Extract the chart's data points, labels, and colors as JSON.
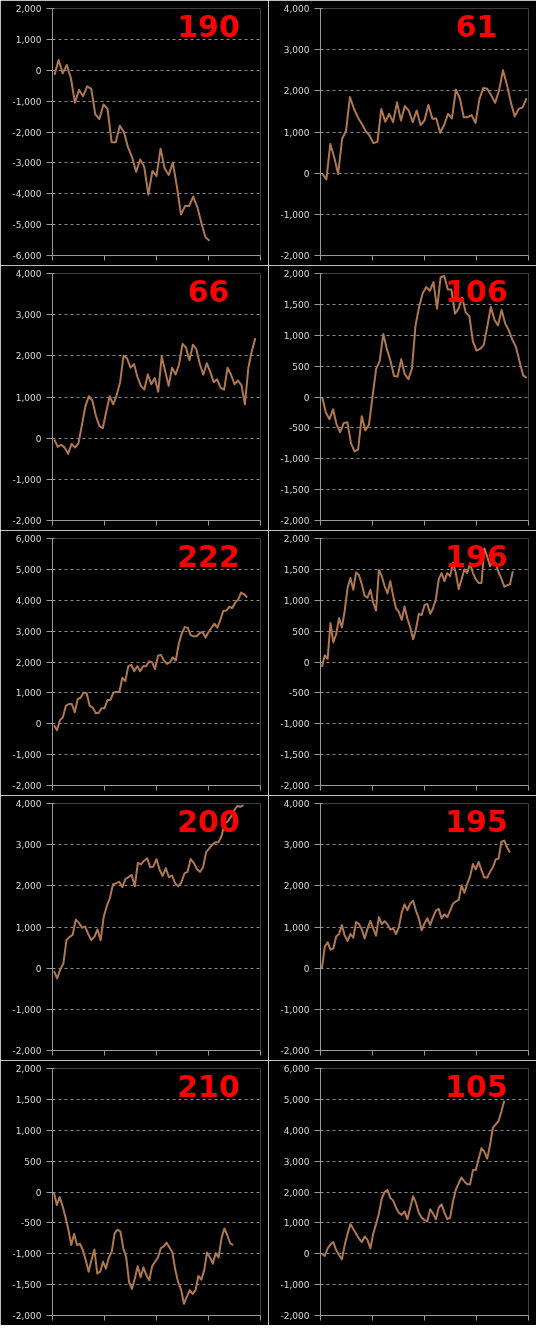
{
  "chart_data": [
    {
      "type": "line",
      "title": "190",
      "color": "#b07850",
      "grid": "y",
      "tick_labels": "y",
      "ylim": [
        -6000,
        2000
      ],
      "yticks": [
        {
          "value": -6000,
          "label": "-6,000"
        },
        {
          "value": -5000,
          "label": "-5,000"
        },
        {
          "value": -4000,
          "label": "-4,000"
        },
        {
          "value": -3000,
          "label": "-3,000"
        },
        {
          "value": -2000,
          "label": "-2,000"
        },
        {
          "value": -1000,
          "label": "-1,000"
        },
        0,
        {
          "value": 1000,
          "label": "1,000"
        },
        {
          "value": 2000,
          "label": "2,000"
        }
      ],
      "categories": [
        null,
        null,
        null,
        null,
        null,
        null,
        null,
        null,
        null,
        null,
        null,
        null,
        null,
        null,
        null,
        null,
        null,
        null,
        null,
        null,
        null,
        null,
        null,
        null,
        null,
        null,
        null,
        null,
        null,
        null,
        null,
        null,
        null,
        null,
        null,
        null,
        null,
        null,
        null,
        null,
        null,
        null,
        null,
        null,
        null,
        null,
        null,
        null,
        null,
        null,
        null
      ],
      "values": [
        -150,
        330,
        -100,
        170,
        -250,
        -1050,
        -630,
        -840,
        -520,
        -600,
        -1430,
        -1580,
        -1110,
        -1250,
        -2330,
        -2330,
        -1800,
        -2000,
        -2490,
        -2810,
        -3290,
        -2890,
        -3130,
        -4030,
        -3260,
        -3430,
        -2540,
        -3180,
        -3390,
        -2990,
        -3770,
        -4670,
        -4400,
        -4400,
        -4090,
        -4430,
        -4940,
        -5410,
        -5520,
        null,
        null,
        null,
        null,
        null,
        null,
        null,
        null,
        null,
        null,
        null,
        null
      ]
    },
    {
      "type": "line",
      "title": "61",
      "color": "#b07850",
      "grid": "y",
      "tick_labels": "y",
      "ylim": [
        -2000,
        4000
      ],
      "yticks": [
        {
          "value": -2000,
          "label": "-2,000"
        },
        {
          "value": -1000,
          "label": "-1,000"
        },
        0,
        {
          "value": 1000,
          "label": "1,000"
        },
        {
          "value": 2000,
          "label": "2,000"
        },
        {
          "value": 3000,
          "label": "3,000"
        },
        {
          "value": 4000,
          "label": "4,000"
        }
      ],
      "categories": [
        null,
        null,
        null,
        null,
        null,
        null,
        null,
        null,
        null,
        null,
        null,
        null,
        null,
        null,
        null,
        null,
        null,
        null,
        null,
        null,
        null,
        null,
        null,
        null,
        null,
        null,
        null,
        null,
        null,
        null,
        null,
        null,
        null,
        null,
        null,
        null,
        null,
        null,
        null,
        null,
        null,
        null,
        null,
        null,
        null,
        null,
        null,
        null,
        null,
        null,
        null,
        null,
        null
      ],
      "values": [
        -20,
        -150,
        710,
        380,
        -20,
        830,
        1030,
        1850,
        1570,
        1360,
        1200,
        1030,
        910,
        730,
        760,
        1560,
        1250,
        1440,
        1240,
        1720,
        1280,
        1630,
        1520,
        1240,
        1520,
        1170,
        1280,
        1660,
        1320,
        1330,
        980,
        1170,
        1440,
        1330,
        2030,
        1820,
        1360,
        1360,
        1410,
        1220,
        1800,
        2070,
        2050,
        1890,
        1710,
        2010,
        2500,
        2150,
        1720,
        1380,
        1560,
        1600,
        1820
      ]
    },
    {
      "type": "line",
      "title": "66",
      "color": "#b07850",
      "grid": "y",
      "tick_labels": "y",
      "ylim": [
        -2000,
        4000
      ],
      "yticks": [
        {
          "value": -2000,
          "label": "-2,000"
        },
        {
          "value": -1000,
          "label": "-1,000"
        },
        0,
        {
          "value": 1000,
          "label": "1,000"
        },
        {
          "value": 2000,
          "label": "2,000"
        },
        {
          "value": 3000,
          "label": "3,000"
        },
        {
          "value": 4000,
          "label": "4,000"
        }
      ],
      "categories": [
        null,
        null,
        null,
        null,
        null,
        null,
        null,
        null,
        null,
        null,
        null,
        null,
        null,
        null,
        null,
        null,
        null,
        null,
        null,
        null,
        null,
        null,
        null,
        null,
        null,
        null,
        null,
        null,
        null,
        null,
        null,
        null,
        null,
        null,
        null,
        null,
        null,
        null,
        null,
        null,
        null,
        null,
        null,
        null,
        null,
        null,
        null,
        null,
        null,
        null,
        null,
        null,
        null,
        null,
        null,
        null,
        null,
        null,
        null,
        null
      ],
      "values": [
        -30,
        -210,
        -160,
        -230,
        -380,
        -140,
        -230,
        -120,
        330,
        780,
        1020,
        910,
        550,
        300,
        240,
        640,
        1020,
        820,
        1040,
        1360,
        2000,
        1940,
        1710,
        1800,
        1490,
        1270,
        1180,
        1550,
        1310,
        1460,
        1130,
        1980,
        1630,
        1270,
        1710,
        1550,
        1790,
        2290,
        2200,
        1890,
        2270,
        2160,
        1800,
        1540,
        1820,
        1610,
        1360,
        1430,
        1220,
        1180,
        1710,
        1540,
        1310,
        1400,
        1290,
        820,
        1710,
        2120,
        2430,
        null
      ]
    },
    {
      "type": "line",
      "title": "106",
      "color": "#b07850",
      "grid": "y",
      "tick_labels": "y",
      "ylim": [
        -2000,
        2000
      ],
      "yticks": [
        {
          "value": -2000,
          "label": "-2,000"
        },
        {
          "value": -1500,
          "label": "-1,500"
        },
        {
          "value": -1000,
          "label": "-1,000"
        },
        -500,
        0,
        500,
        {
          "value": 1000,
          "label": "1,000"
        },
        {
          "value": 1500,
          "label": "1,500"
        },
        {
          "value": 2000,
          "label": "2,000"
        }
      ],
      "categories": [
        null,
        null,
        null,
        null,
        null,
        null,
        null,
        null,
        null,
        null,
        null,
        null,
        null,
        null,
        null,
        null,
        null,
        null,
        null,
        null,
        null,
        null,
        null,
        null,
        null,
        null,
        null,
        null,
        null,
        null,
        null,
        null,
        null,
        null,
        null,
        null,
        null,
        null,
        null,
        null,
        null,
        null,
        null,
        null,
        null,
        null,
        null,
        null,
        null,
        null,
        null,
        null,
        null,
        null,
        null,
        null,
        null,
        null
      ],
      "values": [
        -10,
        -250,
        -360,
        -200,
        -450,
        -570,
        -420,
        -410,
        -750,
        -880,
        -850,
        -310,
        -540,
        -450,
        0,
        450,
        580,
        1020,
        780,
        590,
        340,
        330,
        610,
        370,
        290,
        460,
        1160,
        1460,
        1680,
        1780,
        1720,
        1860,
        1430,
        1940,
        1960,
        1740,
        1740,
        1350,
        1430,
        1610,
        1370,
        1310,
        900,
        750,
        780,
        840,
        1140,
        1460,
        1250,
        1160,
        1410,
        1190,
        1080,
        930,
        810,
        580,
        350,
        310
      ]
    },
    {
      "type": "line",
      "title": "222",
      "color": "#b07850",
      "grid": "y",
      "tick_labels": "y",
      "ylim": [
        -2000,
        6000
      ],
      "yticks": [
        {
          "value": -2000,
          "label": "-2,000"
        },
        {
          "value": -1000,
          "label": "-1,000"
        },
        0,
        {
          "value": 1000,
          "label": "1,000"
        },
        {
          "value": 2000,
          "label": "2,000"
        },
        {
          "value": 3000,
          "label": "3,000"
        },
        {
          "value": 4000,
          "label": "4,000"
        },
        {
          "value": 5000,
          "label": "5,000"
        },
        {
          "value": 6000,
          "label": "6,000"
        }
      ],
      "categories": [
        null,
        null,
        null,
        null,
        null,
        null,
        null,
        null,
        null,
        null,
        null,
        null,
        null,
        null,
        null,
        null,
        null,
        null,
        null,
        null,
        null,
        null,
        null,
        null,
        null,
        null,
        null,
        null,
        null,
        null,
        null,
        null,
        null,
        null,
        null,
        null,
        null,
        null,
        null,
        null,
        null,
        null,
        null,
        null,
        null,
        null,
        null,
        null,
        null,
        null,
        null,
        null,
        null,
        null,
        null,
        null,
        null,
        null,
        null,
        null,
        null,
        null,
        null,
        null,
        null,
        null,
        null,
        null,
        null,
        null
      ],
      "values": [
        -50,
        -210,
        110,
        210,
        580,
        640,
        640,
        370,
        800,
        850,
        1010,
        990,
        580,
        530,
        350,
        350,
        500,
        500,
        770,
        770,
        1010,
        1030,
        1030,
        1490,
        1380,
        1860,
        1910,
        1700,
        1860,
        1700,
        1860,
        1860,
        2020,
        1990,
        1770,
        2200,
        2230,
        2050,
        1940,
        1990,
        2150,
        2050,
        2600,
        2920,
        3130,
        3110,
        2870,
        2830,
        2830,
        2940,
        2970,
        2790,
        2970,
        3110,
        3240,
        3110,
        3370,
        3660,
        3660,
        3790,
        3750,
        3930,
        4030,
        4250,
        4190,
        4090,
        null,
        null,
        null,
        null
      ]
    },
    {
      "type": "line",
      "title": "196",
      "color": "#b07850",
      "grid": "y",
      "tick_labels": "y",
      "ylim": [
        -2000,
        2000
      ],
      "yticks": [
        {
          "value": -2000,
          "label": "-2,000"
        },
        {
          "value": -1500,
          "label": "-1,500"
        },
        {
          "value": -1000,
          "label": "-1,000"
        },
        -500,
        0,
        500,
        {
          "value": 1000,
          "label": "1,000"
        },
        {
          "value": 1500,
          "label": "1,500"
        },
        {
          "value": 2000,
          "label": "2,000"
        }
      ],
      "categories": [
        null,
        null,
        null,
        null,
        null,
        null,
        null,
        null,
        null,
        null,
        null,
        null,
        null,
        null,
        null,
        null,
        null,
        null,
        null,
        null,
        null,
        null,
        null,
        null,
        null,
        null,
        null,
        null,
        null,
        null,
        null,
        null,
        null,
        null,
        null,
        null,
        null,
        null,
        null,
        null,
        null,
        null,
        null,
        null,
        null,
        null,
        null,
        null,
        null,
        null,
        null,
        null,
        null,
        null,
        null,
        null,
        null,
        null,
        null,
        null,
        null,
        null,
        null,
        null,
        null,
        null,
        null,
        null,
        null,
        null,
        null,
        null,
        null
      ],
      "values": [
        -80,
        110,
        50,
        630,
        320,
        450,
        710,
        560,
        830,
        1200,
        1360,
        1170,
        1450,
        1410,
        1260,
        1070,
        1040,
        1170,
        960,
        830,
        1490,
        1390,
        1230,
        1110,
        1310,
        1070,
        870,
        810,
        680,
        900,
        700,
        560,
        370,
        530,
        780,
        760,
        920,
        940,
        780,
        870,
        1020,
        1340,
        1440,
        1310,
        1440,
        1390,
        1610,
        1440,
        1180,
        1340,
        1500,
        1440,
        1600,
        1440,
        1340,
        1280,
        1280,
        1840,
        1710,
        1550,
        1630,
        1600,
        1450,
        1350,
        1220,
        1240,
        1260,
        1470,
        null,
        null,
        null,
        null,
        null
      ]
    },
    {
      "type": "line",
      "title": "200",
      "color": "#b07850",
      "grid": "y",
      "tick_labels": "y",
      "ylim": [
        -2000,
        4000
      ],
      "yticks": [
        {
          "value": -2000,
          "label": "-2,000"
        },
        {
          "value": -1000,
          "label": "-1,000"
        },
        0,
        {
          "value": 1000,
          "label": "1,000"
        },
        {
          "value": 2000,
          "label": "2,000"
        },
        {
          "value": 3000,
          "label": "3,000"
        },
        {
          "value": 4000,
          "label": "4,000"
        }
      ],
      "categories": [
        null,
        null,
        null,
        null,
        null,
        null,
        null,
        null,
        null,
        null,
        null,
        null,
        null,
        null,
        null,
        null,
        null,
        null,
        null,
        null,
        null,
        null,
        null,
        null,
        null,
        null,
        null,
        null,
        null,
        null,
        null,
        null,
        null,
        null,
        null,
        null,
        null,
        null,
        null,
        null,
        null,
        null,
        null,
        null,
        null,
        null,
        null,
        null,
        null,
        null,
        null,
        null,
        null,
        null,
        null,
        null,
        null,
        null,
        null,
        null,
        null,
        null,
        null,
        null,
        null,
        null,
        null
      ],
      "values": [
        -70,
        -250,
        -30,
        110,
        680,
        760,
        810,
        1180,
        1100,
        980,
        1010,
        830,
        680,
        760,
        940,
        680,
        1250,
        1510,
        1710,
        2040,
        2060,
        2100,
        1970,
        2170,
        2210,
        2270,
        1990,
        2560,
        2520,
        2610,
        2670,
        2450,
        2470,
        2650,
        2390,
        2240,
        2430,
        2210,
        2250,
        2060,
        1990,
        2080,
        2300,
        2340,
        2650,
        2560,
        2410,
        2340,
        2450,
        2820,
        2910,
        3000,
        3060,
        3060,
        3220,
        3530,
        3570,
        3680,
        3830,
        3940,
        3920,
        3960,
        null,
        null,
        null,
        null,
        null
      ]
    },
    {
      "type": "line",
      "title": "195",
      "color": "#b07850",
      "grid": "y",
      "tick_labels": "y",
      "ylim": [
        -2000,
        4000
      ],
      "yticks": [
        {
          "value": -2000,
          "label": "-2,000"
        },
        {
          "value": -1000,
          "label": "-1,000"
        },
        0,
        {
          "value": 1000,
          "label": "1,000"
        },
        {
          "value": 2000,
          "label": "2,000"
        },
        {
          "value": 3000,
          "label": "3,000"
        },
        {
          "value": 4000,
          "label": "4,000"
        }
      ],
      "categories": [
        null,
        null,
        null,
        null,
        null,
        null,
        null,
        null,
        null,
        null,
        null,
        null,
        null,
        null,
        null,
        null,
        null,
        null,
        null,
        null,
        null,
        null,
        null,
        null,
        null,
        null,
        null,
        null,
        null,
        null,
        null,
        null,
        null,
        null,
        null,
        null,
        null,
        null,
        null,
        null,
        null,
        null,
        null,
        null,
        null,
        null,
        null,
        null,
        null,
        null,
        null,
        null,
        null,
        null,
        null,
        null,
        null,
        null,
        null,
        null,
        null,
        null,
        null,
        null,
        null,
        null,
        null,
        null,
        null,
        null,
        null,
        null,
        null
      ],
      "values": [
        0,
        520,
        630,
        450,
        480,
        770,
        830,
        1050,
        790,
        660,
        830,
        740,
        1120,
        1070,
        940,
        720,
        960,
        1150,
        960,
        790,
        1240,
        1070,
        1140,
        1070,
        940,
        960,
        830,
        1000,
        1350,
        1550,
        1410,
        1570,
        1640,
        1400,
        1210,
        920,
        1090,
        1210,
        1050,
        1240,
        1400,
        1440,
        1210,
        1310,
        1240,
        1400,
        1570,
        1620,
        1660,
        2010,
        1830,
        2050,
        2230,
        2530,
        2400,
        2580,
        2380,
        2200,
        2200,
        2340,
        2450,
        2640,
        2660,
        3070,
        3100,
        2930,
        2810,
        null,
        null,
        null,
        null,
        null,
        null
      ]
    },
    {
      "type": "line",
      "title": "210",
      "color": "#b07850",
      "grid": "y",
      "tick_labels": "y",
      "ylim": [
        -2000,
        2000
      ],
      "yticks": [
        {
          "value": -2000,
          "label": "-2,000"
        },
        {
          "value": -1500,
          "label": "-1,500"
        },
        {
          "value": -1000,
          "label": "-1,000"
        },
        -500,
        0,
        500,
        {
          "value": 1000,
          "label": "1,000"
        },
        {
          "value": 1500,
          "label": "1,500"
        },
        {
          "value": 2000,
          "label": "2,000"
        }
      ],
      "categories": [
        null,
        null,
        null,
        null,
        null,
        null,
        null,
        null,
        null,
        null,
        null,
        null,
        null,
        null,
        null,
        null,
        null,
        null,
        null,
        null,
        null,
        null,
        null,
        null,
        null,
        null,
        null,
        null,
        null,
        null,
        null,
        null,
        null,
        null,
        null,
        null,
        null,
        null,
        null,
        null,
        null,
        null,
        null,
        null,
        null,
        null,
        null,
        null,
        null,
        null,
        null,
        null,
        null,
        null,
        null,
        null,
        null,
        null,
        null,
        null,
        null,
        null,
        null,
        null,
        null,
        null,
        null,
        null,
        null,
        null,
        null,
        null
      ],
      "values": [
        -10,
        -210,
        -80,
        -230,
        -410,
        -610,
        -860,
        -680,
        -860,
        -840,
        -940,
        -1100,
        -1290,
        -1100,
        -930,
        -1320,
        -1290,
        -1130,
        -1240,
        -1060,
        -970,
        -670,
        -610,
        -640,
        -910,
        -1050,
        -1460,
        -1570,
        -1400,
        -1200,
        -1380,
        -1220,
        -1350,
        -1430,
        -1200,
        -1130,
        -1060,
        -910,
        -880,
        -820,
        -900,
        -980,
        -1260,
        -1460,
        -1580,
        -1810,
        -1700,
        -1590,
        -1650,
        -1590,
        -1360,
        -1420,
        -1270,
        -980,
        -1060,
        -1160,
        -990,
        -1060,
        -750,
        -590,
        -700,
        -830,
        -860,
        null,
        null,
        null,
        null,
        null,
        null,
        null,
        null,
        null
      ]
    },
    {
      "type": "line",
      "title": "105",
      "color": "#b07850",
      "grid": "y",
      "tick_labels": "y",
      "ylim": [
        -2000,
        6000
      ],
      "yticks": [
        {
          "value": -2000,
          "label": "-2,000"
        },
        {
          "value": -1000,
          "label": "-1,000"
        },
        0,
        {
          "value": 1000,
          "label": "1,000"
        },
        {
          "value": 2000,
          "label": "2,000"
        },
        {
          "value": 3000,
          "label": "3,000"
        },
        {
          "value": 4000,
          "label": "4,000"
        },
        {
          "value": 5000,
          "label": "5,000"
        },
        {
          "value": 6000,
          "label": "6,000"
        }
      ],
      "categories": [
        null,
        null,
        null,
        null,
        null,
        null,
        null,
        null,
        null,
        null,
        null,
        null,
        null,
        null,
        null,
        null,
        null,
        null,
        null,
        null,
        null,
        null,
        null,
        null,
        null,
        null,
        null,
        null,
        null,
        null,
        null,
        null,
        null,
        null,
        null,
        null,
        null,
        null,
        null,
        null,
        null,
        null,
        null,
        null,
        null,
        null,
        null,
        null,
        null,
        null,
        null,
        null,
        null,
        null,
        null,
        null,
        null,
        null,
        null,
        null,
        null,
        null,
        null,
        null,
        null,
        null,
        null,
        null,
        null,
        null,
        null,
        null,
        null
      ],
      "values": [
        10,
        -70,
        170,
        310,
        380,
        120,
        -40,
        -180,
        280,
        650,
        960,
        800,
        650,
        490,
        380,
        560,
        450,
        170,
        650,
        960,
        1300,
        1790,
        2000,
        2070,
        1810,
        1720,
        1490,
        1330,
        1260,
        1370,
        1120,
        1490,
        1860,
        1650,
        1330,
        1170,
        1090,
        1050,
        1440,
        1300,
        1120,
        1490,
        1600,
        1330,
        1120,
        1170,
        1700,
        2070,
        2290,
        2470,
        2340,
        2250,
        2250,
        2710,
        2710,
        3080,
        3420,
        3310,
        3080,
        3520,
        4080,
        4190,
        4300,
        4610,
        4960,
        null,
        null,
        null,
        null,
        null,
        null,
        null,
        null
      ]
    }
  ]
}
